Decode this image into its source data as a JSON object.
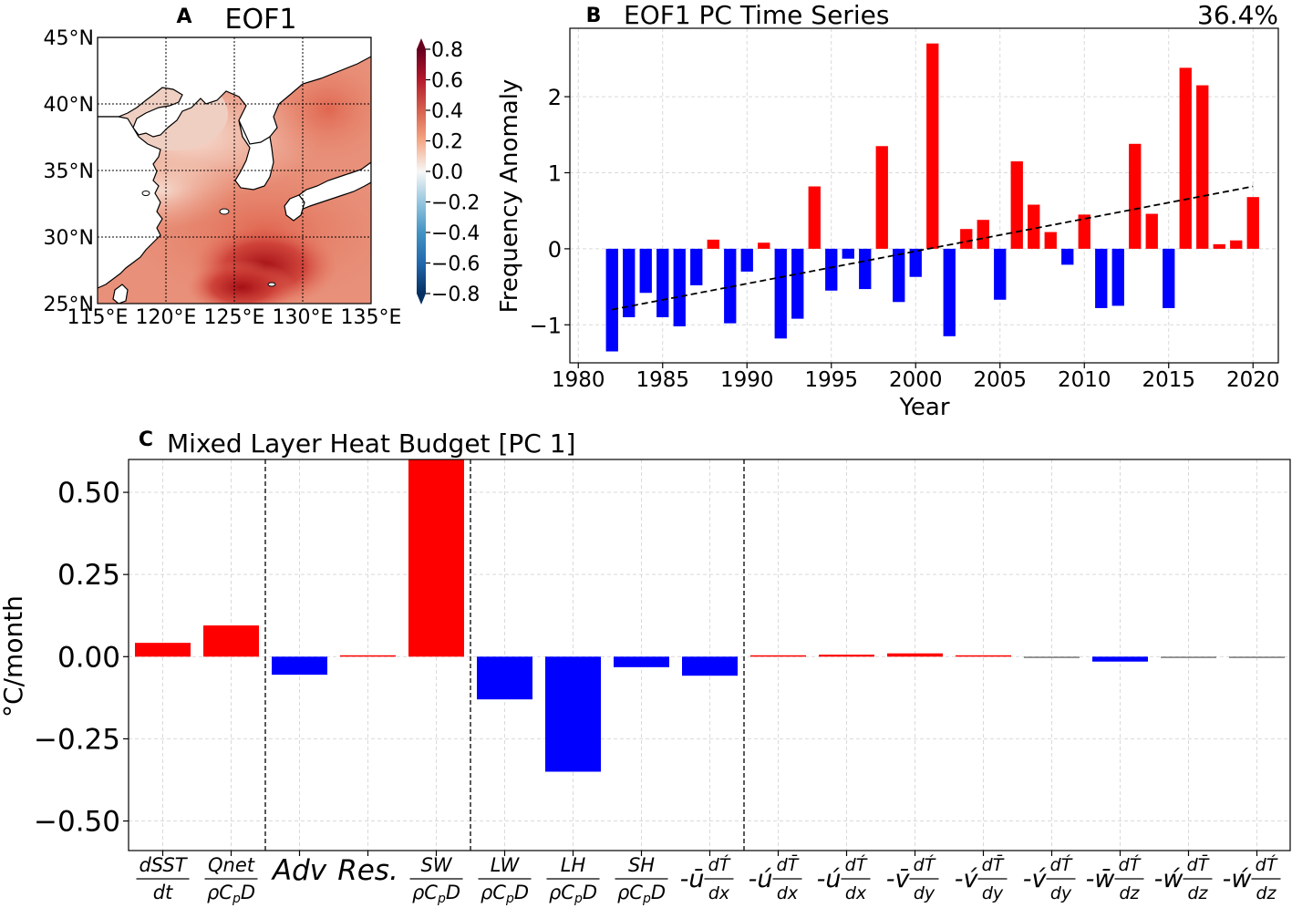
{
  "colors": {
    "positive": "#ff0000",
    "negative": "#0000ff",
    "trend": "#000000"
  },
  "chart_data": [
    {
      "id": "A",
      "type": "heatmap",
      "panel_letter": "A",
      "title": "EOF1",
      "xticks": [
        "115°E",
        "120°E",
        "125°E",
        "130°E",
        "135°E"
      ],
      "yticks": [
        "45°N",
        "40°N",
        "35°N",
        "30°N",
        "25°N"
      ],
      "xlim": [
        115,
        135
      ],
      "ylim": [
        25,
        45
      ],
      "colorbar": {
        "ticks": [
          "0.8",
          "0.6",
          "0.4",
          "0.2",
          "0.0",
          "−0.2",
          "−0.4",
          "−0.6",
          "−0.8"
        ],
        "range": [
          -0.8,
          0.8
        ],
        "cmap": "RdBu_r"
      }
    },
    {
      "id": "B",
      "type": "bar",
      "panel_letter": "B",
      "title": "EOF1 PC Time Series",
      "annotation": "36.4%",
      "xlabel": "Year",
      "ylabel": "Frequency Anomaly",
      "xlim": [
        1979.5,
        2021.5
      ],
      "ylim": [
        -1.5,
        2.9
      ],
      "xticks": [
        "1980",
        "1985",
        "1990",
        "1995",
        "2000",
        "2005",
        "2010",
        "2015",
        "2020"
      ],
      "yticks": [
        "2",
        "1",
        "0",
        "−1"
      ],
      "x": [
        1982,
        1983,
        1984,
        1985,
        1986,
        1987,
        1988,
        1989,
        1990,
        1991,
        1992,
        1993,
        1994,
        1995,
        1996,
        1997,
        1998,
        1999,
        2000,
        2001,
        2002,
        2003,
        2004,
        2005,
        2006,
        2007,
        2008,
        2009,
        2010,
        2011,
        2012,
        2013,
        2014,
        2015,
        2016,
        2017,
        2018,
        2019,
        2020
      ],
      "values": [
        -1.35,
        -0.9,
        -0.58,
        -0.9,
        -1.02,
        -0.48,
        0.12,
        -0.98,
        -0.3,
        0.08,
        -1.18,
        -0.92,
        0.82,
        -0.55,
        -0.13,
        -0.53,
        1.35,
        -0.7,
        -0.37,
        2.7,
        -1.15,
        0.26,
        0.38,
        -0.67,
        1.15,
        0.58,
        0.22,
        -0.21,
        0.45,
        -0.78,
        -0.75,
        1.38,
        0.46,
        -0.78,
        2.38,
        2.15,
        0.06,
        0.11,
        0.68
      ],
      "trend": {
        "x": [
          1982,
          2020
        ],
        "y": [
          -0.8,
          0.82
        ]
      }
    },
    {
      "id": "C",
      "type": "bar",
      "panel_letter": "C",
      "title": "Mixed Layer Heat Budget [PC 1]",
      "ylabel": "°C/month",
      "ylim": [
        -0.59,
        0.6
      ],
      "yticks": [
        "0.50",
        "0.25",
        "0.00",
        "−0.25",
        "−0.50"
      ],
      "values": [
        0.042,
        0.095,
        -0.055,
        0.002,
        0.6,
        -0.13,
        -0.35,
        -0.032,
        -0.058,
        0.003,
        0.006,
        0.01,
        0.003,
        -0.002,
        -0.015,
        -0.001,
        -0.001
      ],
      "separators_after": [
        1,
        4,
        8
      ],
      "categories": [
        {
          "kind": "frac",
          "num": "dSST",
          "den": "dt"
        },
        {
          "kind": "frac",
          "num": "Qnet",
          "den": "ρC_pD"
        },
        {
          "kind": "text",
          "text": "Adv"
        },
        {
          "kind": "text",
          "text": "Res."
        },
        {
          "kind": "frac",
          "num": "SW",
          "den": "ρC_pD"
        },
        {
          "kind": "frac",
          "num": "LW",
          "den": "ρC_pD"
        },
        {
          "kind": "frac",
          "num": "LH",
          "den": "ρC_pD"
        },
        {
          "kind": "frac",
          "num": "SH",
          "den": "ρC_pD"
        },
        {
          "kind": "adv",
          "pre": "-ū",
          "num": "dT́",
          "den": "dx"
        },
        {
          "kind": "adv",
          "pre": "-ú",
          "num": "dT̄",
          "den": "dx"
        },
        {
          "kind": "adv",
          "pre": "-ú",
          "num": "dT́",
          "den": "dx"
        },
        {
          "kind": "adv",
          "pre": "-v̄",
          "num": "dT́",
          "den": "dy"
        },
        {
          "kind": "adv",
          "pre": "-v́",
          "num": "dT̄",
          "den": "dy"
        },
        {
          "kind": "adv",
          "pre": "-v́",
          "num": "dT́",
          "den": "dy"
        },
        {
          "kind": "adv",
          "pre": "-w̄",
          "num": "dT́",
          "den": "dz"
        },
        {
          "kind": "adv",
          "pre": "-ẃ",
          "num": "dT̄",
          "den": "dz"
        },
        {
          "kind": "adv",
          "pre": "-ẃ",
          "num": "dT́",
          "den": "dz"
        }
      ]
    }
  ]
}
